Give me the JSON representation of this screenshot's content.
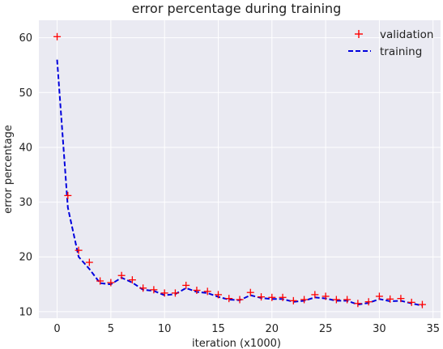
{
  "chart_data": {
    "type": "line",
    "title": "error percentage during training",
    "xlabel": "iteration (x1000)",
    "ylabel": "error percentage",
    "xlim": [
      -1.7,
      35.7
    ],
    "ylim": [
      8.8,
      63.2
    ],
    "xticks": [
      0,
      5,
      10,
      15,
      20,
      25,
      30,
      35
    ],
    "yticks": [
      10,
      20,
      30,
      40,
      50,
      60
    ],
    "grid": true,
    "legend_position": "top-right",
    "series": [
      {
        "name": "validation",
        "style": "scatter-plus",
        "color": "#ff0000",
        "x": [
          0,
          1,
          2,
          3,
          4,
          5,
          6,
          7,
          8,
          9,
          10,
          11,
          12,
          13,
          14,
          15,
          16,
          17,
          18,
          19,
          20,
          21,
          22,
          23,
          24,
          25,
          26,
          27,
          28,
          29,
          30,
          31,
          32,
          33,
          34
        ],
        "y": [
          60.2,
          31.2,
          21.2,
          19.0,
          15.6,
          15.3,
          16.6,
          15.8,
          14.3,
          14.0,
          13.4,
          13.4,
          14.8,
          13.9,
          13.7,
          13.1,
          12.4,
          12.2,
          13.5,
          12.7,
          12.6,
          12.6,
          12.0,
          12.2,
          13.1,
          12.8,
          12.2,
          12.2,
          11.5,
          11.8,
          12.8,
          12.3,
          12.4,
          11.7,
          11.3
        ]
      },
      {
        "name": "training",
        "style": "dashed-line",
        "color": "#0000dd",
        "x": [
          0,
          1,
          2,
          3,
          4,
          5,
          6,
          7,
          8,
          9,
          10,
          11,
          12,
          13,
          14,
          15,
          16,
          17,
          18,
          19,
          20,
          21,
          22,
          23,
          24,
          25,
          26,
          27,
          28,
          29,
          30,
          31,
          32,
          33,
          34
        ],
        "y": [
          56.0,
          29.0,
          20.0,
          17.8,
          15.2,
          15.0,
          16.2,
          15.3,
          14.0,
          13.8,
          13.0,
          13.2,
          14.3,
          13.6,
          13.4,
          12.7,
          12.2,
          12.1,
          13.0,
          12.5,
          12.3,
          12.3,
          11.8,
          12.0,
          12.6,
          12.4,
          12.0,
          12.0,
          11.3,
          11.6,
          12.3,
          11.9,
          12.0,
          11.5,
          11.1
        ]
      }
    ]
  }
}
